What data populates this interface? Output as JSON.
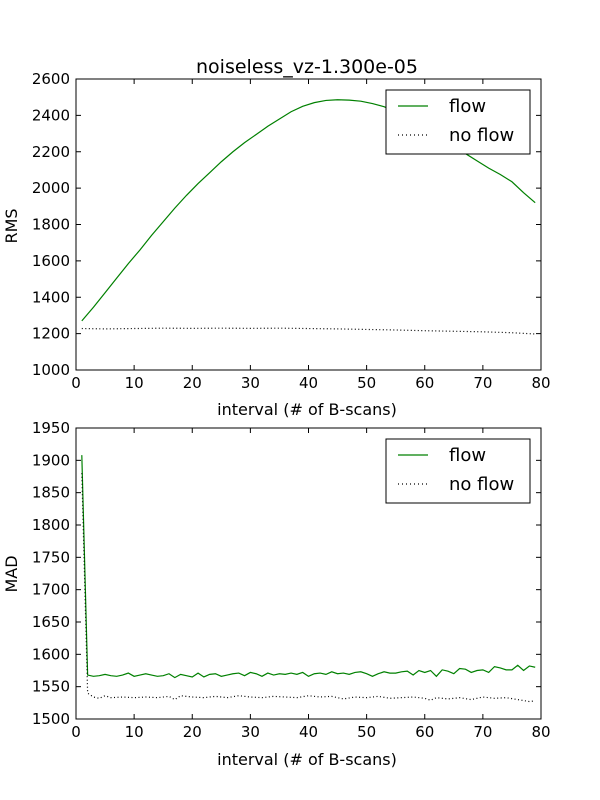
{
  "chart_data": [
    {
      "type": "line",
      "title": "noiseless_vz-1.300e-05",
      "xlabel": "interval (# of B-scans)",
      "ylabel": "RMS",
      "xlim": [
        0,
        80
      ],
      "ylim": [
        1000,
        2600
      ],
      "xticks": [
        0,
        10,
        20,
        30,
        40,
        50,
        60,
        70,
        80
      ],
      "yticks": [
        1000,
        1200,
        1400,
        1600,
        1800,
        2000,
        2200,
        2400,
        2600
      ],
      "legend_position": "top-right",
      "series": [
        {
          "name": "flow",
          "color": "#008000",
          "style": "solid",
          "x": [
            1,
            3,
            5,
            7,
            9,
            11,
            13,
            15,
            17,
            19,
            21,
            23,
            25,
            27,
            29,
            31,
            33,
            35,
            37,
            39,
            41,
            43,
            45,
            47,
            49,
            51,
            53,
            55,
            57,
            59,
            61,
            63,
            65,
            67,
            69,
            71,
            73,
            75,
            77,
            79
          ],
          "y": [
            1270,
            1345,
            1425,
            1505,
            1585,
            1660,
            1740,
            1815,
            1890,
            1960,
            2025,
            2085,
            2145,
            2200,
            2250,
            2295,
            2340,
            2380,
            2420,
            2450,
            2470,
            2482,
            2486,
            2484,
            2478,
            2465,
            2448,
            2420,
            2385,
            2350,
            2310,
            2270,
            2230,
            2190,
            2150,
            2110,
            2075,
            2035,
            1975,
            1920
          ]
        },
        {
          "name": "no flow",
          "color": "#000000",
          "style": "dotted",
          "x": [
            1,
            5,
            10,
            15,
            20,
            25,
            30,
            35,
            40,
            45,
            50,
            55,
            60,
            65,
            70,
            75,
            79
          ],
          "y": [
            1228,
            1226,
            1228,
            1230,
            1229,
            1230,
            1229,
            1230,
            1228,
            1226,
            1223,
            1220,
            1216,
            1213,
            1210,
            1205,
            1198
          ]
        }
      ]
    },
    {
      "type": "line",
      "title": "",
      "xlabel": "interval (# of B-scans)",
      "ylabel": "MAD",
      "xlim": [
        0,
        80
      ],
      "ylim": [
        1500,
        1950
      ],
      "xticks": [
        0,
        10,
        20,
        30,
        40,
        50,
        60,
        70,
        80
      ],
      "yticks": [
        1500,
        1550,
        1600,
        1650,
        1700,
        1750,
        1800,
        1850,
        1900,
        1950
      ],
      "legend_position": "top-right",
      "series": [
        {
          "name": "flow",
          "color": "#008000",
          "style": "solid",
          "x": [
            1,
            2,
            3,
            4,
            5,
            6,
            7,
            8,
            9,
            10,
            11,
            12,
            13,
            14,
            15,
            16,
            17,
            18,
            19,
            20,
            21,
            22,
            23,
            24,
            25,
            26,
            27,
            28,
            29,
            30,
            31,
            32,
            33,
            34,
            35,
            36,
            37,
            38,
            39,
            40,
            41,
            42,
            43,
            44,
            45,
            46,
            47,
            48,
            49,
            50,
            51,
            52,
            53,
            54,
            55,
            56,
            57,
            58,
            59,
            60,
            61,
            62,
            63,
            64,
            65,
            66,
            67,
            68,
            69,
            70,
            71,
            72,
            73,
            74,
            75,
            76,
            77,
            78,
            79
          ],
          "y": [
            1908,
            1568,
            1566,
            1567,
            1569,
            1567,
            1566,
            1568,
            1571,
            1566,
            1568,
            1570,
            1568,
            1566,
            1567,
            1570,
            1564,
            1569,
            1567,
            1565,
            1571,
            1565,
            1569,
            1570,
            1566,
            1568,
            1570,
            1571,
            1567,
            1572,
            1570,
            1566,
            1571,
            1568,
            1570,
            1569,
            1571,
            1569,
            1572,
            1566,
            1570,
            1571,
            1569,
            1573,
            1570,
            1571,
            1569,
            1572,
            1573,
            1570,
            1566,
            1570,
            1573,
            1571,
            1571,
            1573,
            1574,
            1568,
            1575,
            1572,
            1575,
            1566,
            1576,
            1574,
            1570,
            1578,
            1577,
            1572,
            1575,
            1576,
            1572,
            1581,
            1579,
            1576,
            1576,
            1583,
            1575,
            1582,
            1580
          ]
        },
        {
          "name": "no flow",
          "color": "#000000",
          "style": "dotted",
          "x": [
            1,
            2,
            3,
            4,
            5,
            6,
            8,
            10,
            12,
            14,
            16,
            17,
            18,
            20,
            22,
            24,
            26,
            28,
            30,
            32,
            34,
            36,
            38,
            40,
            42,
            44,
            46,
            48,
            50,
            52,
            54,
            56,
            58,
            60,
            61,
            62,
            64,
            66,
            68,
            70,
            72,
            74,
            76,
            78,
            79
          ],
          "y": [
            1880,
            1540,
            1534,
            1532,
            1536,
            1533,
            1534,
            1533,
            1534,
            1533,
            1535,
            1530,
            1536,
            1534,
            1533,
            1535,
            1533,
            1536,
            1534,
            1533,
            1535,
            1534,
            1533,
            1536,
            1534,
            1535,
            1531,
            1534,
            1533,
            1535,
            1532,
            1533,
            1534,
            1532,
            1529,
            1533,
            1531,
            1533,
            1530,
            1534,
            1532,
            1533,
            1530,
            1527,
            1528
          ]
        }
      ]
    }
  ]
}
